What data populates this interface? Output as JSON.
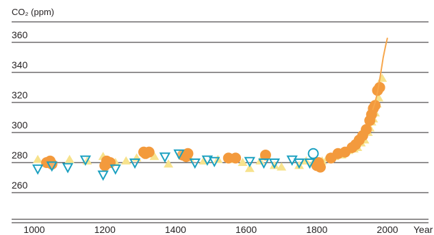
{
  "chart_data": {
    "type": "scatter",
    "title": "",
    "ylabel": "CO₂ (ppm)",
    "xlabel": "Year",
    "xlim": [
      950,
      2050
    ],
    "ylim": [
      240,
      380
    ],
    "y_ticks": [
      260,
      280,
      300,
      320,
      340,
      360
    ],
    "x_ticks": [
      1000,
      1200,
      1400,
      1600,
      1800,
      2000
    ],
    "grid": "horizontal",
    "legend": "none",
    "colors": {
      "circles": "#f39a3d",
      "triangles_up": "#f7e28c",
      "triangles_down": "#1aa0c0",
      "modern_line": "#f7a64a",
      "grid": "#231f20"
    },
    "series": [
      {
        "marker": "circle",
        "points": [
          [
            1035,
            280
          ],
          [
            1045,
            281
          ],
          [
            1050,
            279
          ],
          [
            1200,
            278
          ],
          [
            1205,
            281
          ],
          [
            1215,
            280
          ],
          [
            1310,
            287
          ],
          [
            1315,
            286
          ],
          [
            1325,
            287
          ],
          [
            1420,
            285
          ],
          [
            1430,
            284
          ],
          [
            1435,
            286
          ],
          [
            1550,
            283
          ],
          [
            1570,
            283
          ],
          [
            1655,
            285
          ],
          [
            1800,
            278
          ],
          [
            1805,
            280
          ],
          [
            1810,
            277
          ],
          [
            1840,
            283
          ],
          [
            1860,
            286
          ],
          [
            1880,
            287
          ],
          [
            1900,
            290
          ],
          [
            1910,
            292
          ],
          [
            1920,
            295
          ],
          [
            1930,
            298
          ],
          [
            1940,
            302
          ],
          [
            1950,
            308
          ],
          [
            1955,
            312
          ],
          [
            1960,
            316
          ],
          [
            1965,
            318
          ],
          [
            1972,
            328
          ],
          [
            1978,
            330
          ]
        ]
      },
      {
        "marker": "triangle-up",
        "points": [
          [
            1010,
            282
          ],
          [
            1050,
            279
          ],
          [
            1100,
            282
          ],
          [
            1150,
            281
          ],
          [
            1195,
            284
          ],
          [
            1230,
            280
          ],
          [
            1260,
            281
          ],
          [
            1290,
            283
          ],
          [
            1340,
            284
          ],
          [
            1380,
            279
          ],
          [
            1440,
            283
          ],
          [
            1480,
            281
          ],
          [
            1520,
            282
          ],
          [
            1560,
            282
          ],
          [
            1590,
            280
          ],
          [
            1610,
            276
          ],
          [
            1640,
            281
          ],
          [
            1680,
            278
          ],
          [
            1700,
            277
          ],
          [
            1750,
            278
          ],
          [
            1770,
            281
          ],
          [
            1790,
            280
          ],
          [
            1815,
            281
          ],
          [
            1830,
            283
          ],
          [
            1850,
            284
          ],
          [
            1870,
            285
          ],
          [
            1890,
            288
          ],
          [
            1905,
            289
          ],
          [
            1915,
            290
          ],
          [
            1925,
            293
          ],
          [
            1935,
            295
          ],
          [
            1945,
            300
          ],
          [
            1950,
            303
          ],
          [
            1955,
            307
          ],
          [
            1960,
            309
          ],
          [
            1965,
            313
          ],
          [
            1970,
            319
          ],
          [
            1975,
            323
          ],
          [
            1980,
            331
          ],
          [
            1985,
            336
          ]
        ]
      },
      {
        "marker": "triangle-down",
        "points": [
          [
            1010,
            276
          ],
          [
            1050,
            278
          ],
          [
            1095,
            277
          ],
          [
            1145,
            282
          ],
          [
            1195,
            272
          ],
          [
            1230,
            276
          ],
          [
            1285,
            280
          ],
          [
            1370,
            284
          ],
          [
            1410,
            286
          ],
          [
            1455,
            280
          ],
          [
            1490,
            282
          ],
          [
            1510,
            281
          ],
          [
            1610,
            281
          ],
          [
            1650,
            280
          ],
          [
            1680,
            280
          ],
          [
            1730,
            282
          ],
          [
            1750,
            280
          ],
          [
            1780,
            280
          ]
        ]
      },
      {
        "marker": "circle-open",
        "points": [
          [
            1790,
            286
          ]
        ]
      }
    ],
    "modern_line": {
      "name": "",
      "points": [
        [
          1958,
          315
        ],
        [
          1965,
          320
        ],
        [
          1972,
          327
        ],
        [
          1980,
          338
        ],
        [
          1988,
          350
        ],
        [
          1995,
          358
        ],
        [
          2000,
          363
        ]
      ]
    }
  }
}
